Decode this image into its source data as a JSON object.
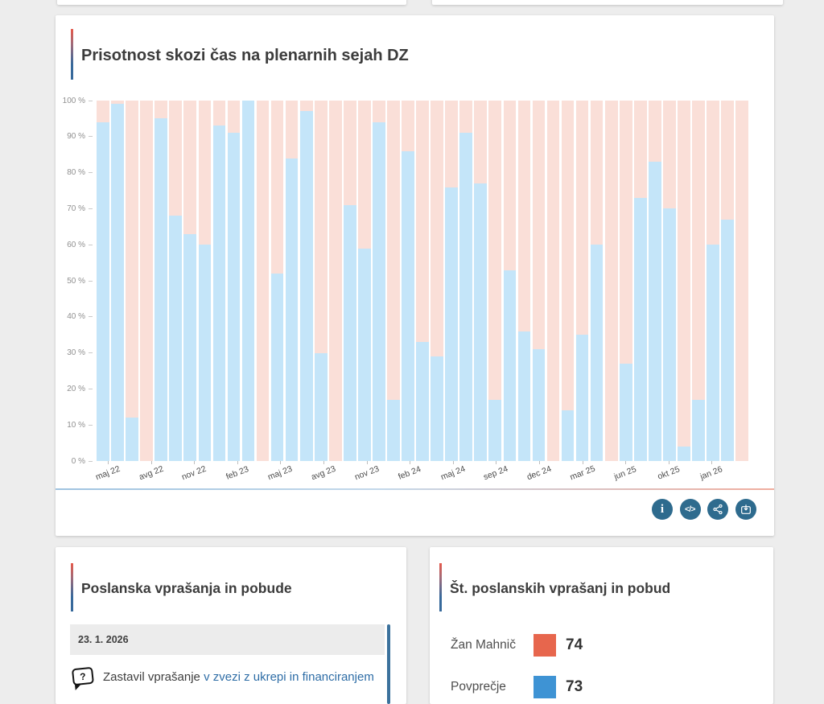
{
  "page": {
    "background": "#ededed"
  },
  "attendance_card": {
    "title": "Prisotnost skozi čas na plenarnih sejah DZ",
    "toolbar": {
      "button_color": "#2e6b8e",
      "buttons": [
        {
          "name": "info",
          "glyph": "i"
        },
        {
          "name": "embed",
          "glyph": "</>"
        },
        {
          "name": "share"
        },
        {
          "name": "download"
        }
      ]
    }
  },
  "chart_data": {
    "type": "bar",
    "stacked": true,
    "title": "Prisotnost skozi čas na plenarnih sejah DZ",
    "unit": "%",
    "ylim": [
      0,
      100
    ],
    "grid": false,
    "legend": "none",
    "x_tick_every": 3,
    "y_ticks": [
      "100 %",
      "90 %",
      "80 %",
      "70 %",
      "60 %",
      "50 %",
      "40 %",
      "30 %",
      "20 %",
      "10 %",
      "0 %"
    ],
    "categories": [
      "maj 22",
      "jun 22",
      "jul 22",
      "avg 22",
      "sep 22",
      "okt 22",
      "nov 22",
      "dec 22",
      "jan 23",
      "feb 23",
      "mar 23",
      "apr 23",
      "maj 23",
      "jun 23",
      "jul 23",
      "avg 23",
      "sep 23",
      "okt 23",
      "nov 23",
      "dec 23",
      "jan 24",
      "feb 24",
      "mar 24",
      "apr 24",
      "maj 24",
      "jun 24",
      "jul 24",
      "sep 24",
      "okt 24",
      "nov 24",
      "dec 24",
      "jan 25",
      "feb 25",
      "mar 25",
      "apr 25",
      "maj 25",
      "jun 25",
      "jul 25",
      "sep 25",
      "okt 25",
      "nov 25",
      "dec 25",
      "jan 26",
      "feb 26",
      "mar 26"
    ],
    "series": [
      {
        "name": "prisotnost",
        "color": "#c4e5f9",
        "values": [
          94,
          99,
          12,
          0,
          95,
          68,
          63,
          60,
          93,
          91,
          100,
          0,
          52,
          84,
          97,
          30,
          0,
          71,
          59,
          94,
          17,
          86,
          33,
          29,
          76,
          91,
          77,
          17,
          53,
          36,
          31,
          0,
          14,
          35,
          60,
          0,
          27,
          73,
          83,
          70,
          4,
          17,
          60,
          67,
          0
        ]
      },
      {
        "name": "odsotnost",
        "color": "#fadfd8",
        "values": [
          6,
          1,
          88,
          100,
          5,
          32,
          37,
          40,
          7,
          9,
          0,
          100,
          48,
          16,
          3,
          70,
          100,
          29,
          41,
          6,
          83,
          14,
          67,
          71,
          24,
          9,
          23,
          83,
          47,
          64,
          69,
          100,
          86,
          65,
          40,
          100,
          73,
          27,
          17,
          30,
          96,
          83,
          40,
          33,
          100
        ]
      }
    ]
  },
  "questions_card": {
    "title": "Poslanska vprašanja in pobude",
    "date_header": "23. 1. 2026",
    "item": {
      "icon": "question-bubble",
      "icon_glyph": "?",
      "text_prefix": "Zastavil vprašanje ",
      "link_text": "v zvezi z ukrepi in financiranjem"
    }
  },
  "count_card": {
    "title": "Št. poslanskih vprašanj in pobud",
    "rows": [
      {
        "label": "Žan Mahnič",
        "color": "#e7664d",
        "value": "74"
      },
      {
        "label": "Povprečje",
        "color": "#3e93d4",
        "value": "73"
      }
    ]
  }
}
